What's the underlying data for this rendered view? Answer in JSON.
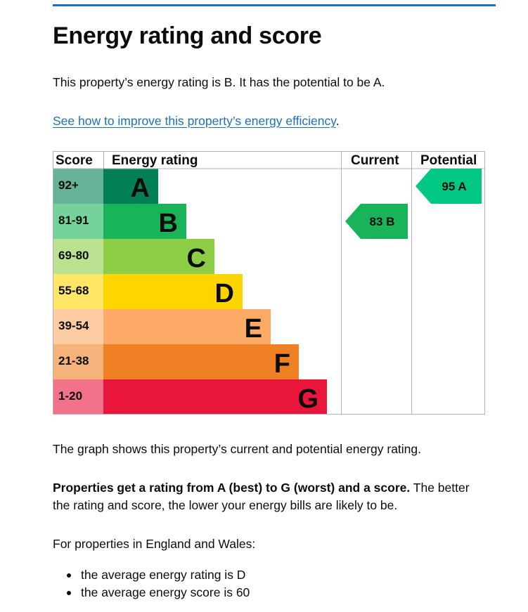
{
  "heading": "Energy rating and score",
  "intro": "This property’s energy rating is B. It has the potential to be A.",
  "improve_link": "See how to improve this property’s energy efficiency",
  "improve_link_suffix": ".",
  "chart_data": {
    "type": "table",
    "headers": {
      "score": "Score",
      "rating": "Energy rating",
      "current": "Current",
      "potential": "Potential"
    },
    "bands": [
      {
        "score": "92+",
        "letter": "A",
        "color": "#008054",
        "score_bg": "#66b398"
      },
      {
        "score": "81-91",
        "letter": "B",
        "color": "#19b459",
        "score_bg": "#75d29b"
      },
      {
        "score": "69-80",
        "letter": "C",
        "color": "#8dce46",
        "score_bg": "#bbe290"
      },
      {
        "score": "55-68",
        "letter": "D",
        "color": "#ffd500",
        "score_bg": "#ffe666"
      },
      {
        "score": "39-54",
        "letter": "E",
        "color": "#fcaa65",
        "score_bg": "#fdcca3"
      },
      {
        "score": "21-38",
        "letter": "F",
        "color": "#ef8023",
        "score_bg": "#f5b37b"
      },
      {
        "score": "1-20",
        "letter": "G",
        "color": "#e9153b",
        "score_bg": "#f27389"
      }
    ],
    "current": {
      "score": 83,
      "rating": "B",
      "label": "83  B",
      "color": "#19b459"
    },
    "potential": {
      "score": 95,
      "rating": "A",
      "label": "95  A",
      "color": "#00c781"
    }
  },
  "graph_text": "The graph shows this property’s current and potential energy rating.",
  "rating_bold": "Properties get a rating from A (best) to G (worst) and a score.",
  "rating_rest": " The better the rating and score, the lower your energy bills are likely to be.",
  "avg_intro": "For properties in England and Wales:",
  "averages": [
    "the average energy rating is D",
    "the average energy score is 60"
  ],
  "colors": {
    "link": "#1d70b8",
    "text": "#0b0c0c",
    "rule": "#1d70b8"
  }
}
